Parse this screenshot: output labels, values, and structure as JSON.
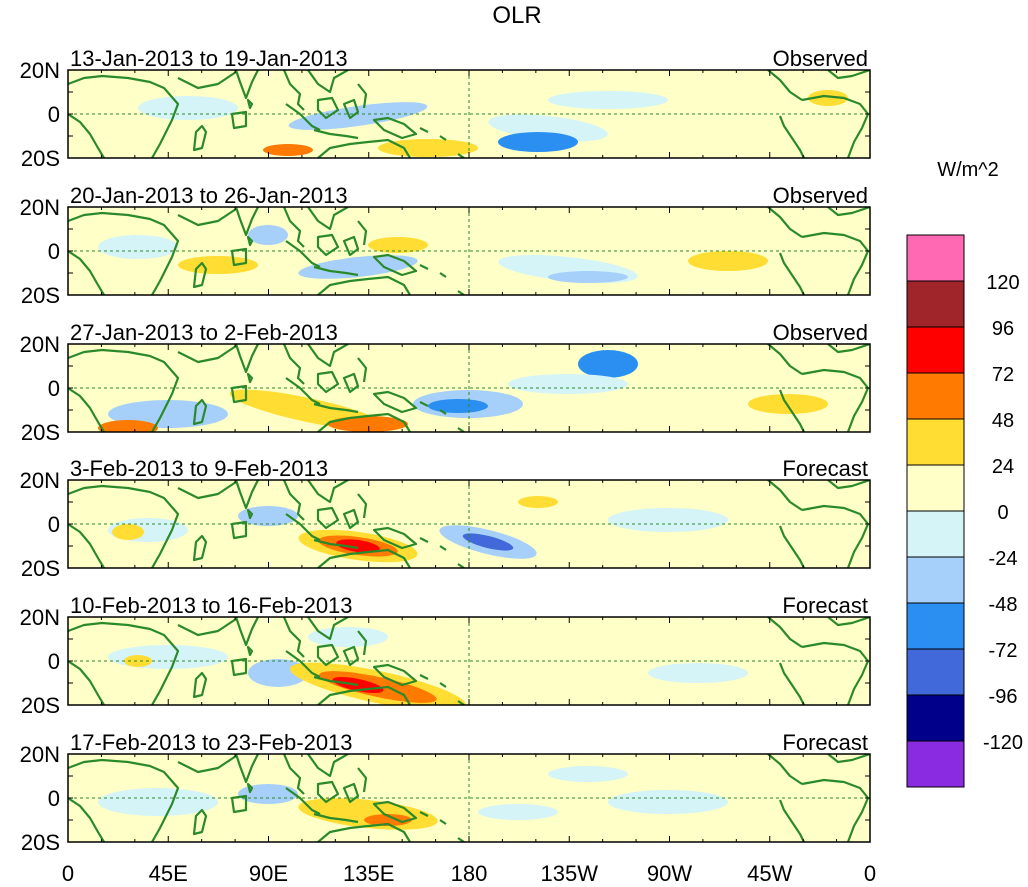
{
  "title": "OLR",
  "units_label": "W/m^2",
  "panels": [
    {
      "period": "13-Jan-2013 to 19-Jan-2013",
      "kind": "Observed"
    },
    {
      "period": "20-Jan-2013 to 26-Jan-2013",
      "kind": "Observed"
    },
    {
      "period": "27-Jan-2013 to 2-Feb-2013",
      "kind": "Observed"
    },
    {
      "period": "3-Feb-2013 to 9-Feb-2013",
      "kind": "Forecast"
    },
    {
      "period": "10-Feb-2013 to 16-Feb-2013",
      "kind": "Forecast"
    },
    {
      "period": "17-Feb-2013 to 23-Feb-2013",
      "kind": "Forecast"
    }
  ],
  "lat_labels": [
    "20N",
    "0",
    "20S"
  ],
  "lon_labels": [
    "0",
    "45E",
    "90E",
    "135E",
    "180",
    "135W",
    "90W",
    "45W",
    "0"
  ],
  "colorbar": {
    "levels": [
      "120",
      "96",
      "72",
      "48",
      "24",
      "0",
      "-24",
      "-48",
      "-72",
      "-96",
      "-120"
    ],
    "colors": [
      "#ff69b4",
      "#a0252a",
      "#ff0000",
      "#ff7a00",
      "#ffdd33",
      "#ffffc8",
      "#d4f4f8",
      "#a6d0fa",
      "#2b8ff2",
      "#4169d9",
      "#00008b",
      "#8a2be2"
    ]
  },
  "map_colors": {
    "neutral": "#ffffc8",
    "coast": "#2a8a2a",
    "pos24": "#ffdd33",
    "pos48": "#ff7a00",
    "pos72": "#ff0000",
    "pos96": "#a0252a",
    "neg24": "#d4f4f8",
    "neg48": "#a6d0fa",
    "neg72": "#2b8ff2",
    "neg96": "#4169d9"
  }
}
